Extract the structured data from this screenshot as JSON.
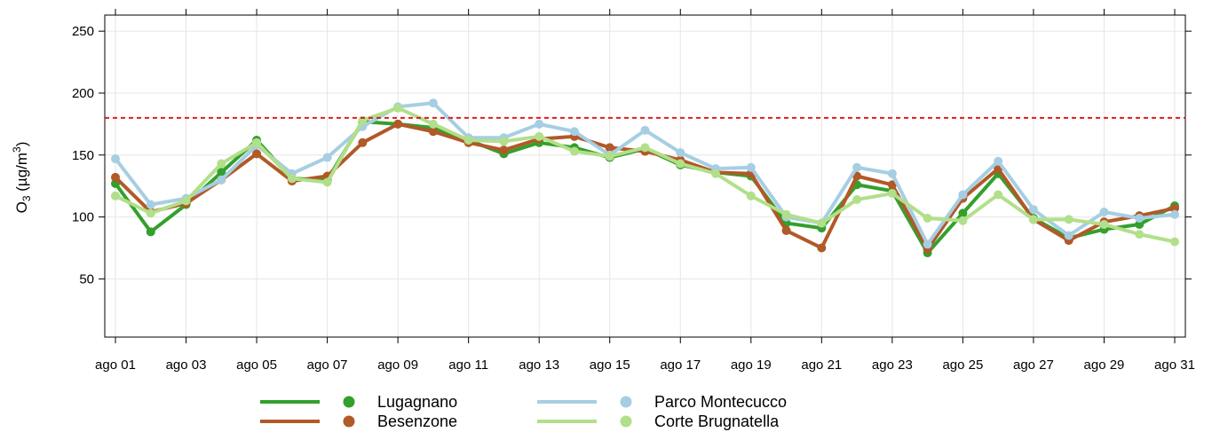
{
  "chart_data": {
    "type": "line",
    "ylabel_parts": [
      "O",
      "3",
      " (µg/m",
      "3",
      ")"
    ],
    "categories": [
      "ago 01",
      null,
      "ago 03",
      null,
      "ago 05",
      null,
      "ago 07",
      null,
      "ago 09",
      null,
      "ago 11",
      null,
      "ago 13",
      null,
      "ago 15",
      null,
      "ago 17",
      null,
      "ago 19",
      null,
      "ago 21",
      null,
      "ago 23",
      null,
      "ago 25",
      null,
      "ago 27",
      null,
      "ago 29",
      null,
      "ago 31"
    ],
    "series": [
      {
        "name": "Lugagnano",
        "color": "#33a02c",
        "values": [
          127,
          88,
          110,
          136,
          162,
          131,
          130,
          177,
          175,
          172,
          162,
          151,
          160,
          156,
          148,
          155,
          142,
          136,
          133,
          95,
          91,
          126,
          121,
          71,
          103,
          135,
          99,
          83,
          90,
          94,
          109
        ]
      },
      {
        "name": "Besenzone",
        "color": "#b15928",
        "values": [
          132,
          104,
          111,
          130,
          151,
          129,
          133,
          160,
          175,
          169,
          160,
          154,
          163,
          165,
          156,
          153,
          146,
          136,
          135,
          89,
          75,
          133,
          126,
          74,
          115,
          139,
          98,
          81,
          96,
          101,
          107
        ]
      },
      {
        "name": "Parco Montecucco",
        "color": "#a6cee3",
        "values": [
          147,
          110,
          115,
          130,
          158,
          135,
          148,
          173,
          189,
          192,
          164,
          164,
          175,
          169,
          150,
          170,
          152,
          139,
          140,
          100,
          95,
          140,
          135,
          78,
          118,
          145,
          106,
          85,
          104,
          99,
          102
        ]
      },
      {
        "name": "Corte Brugnatella",
        "color": "#b2df8a",
        "values": [
          117,
          103,
          113,
          143,
          160,
          131,
          128,
          178,
          188,
          175,
          162,
          161,
          165,
          153,
          149,
          156,
          143,
          135,
          117,
          102,
          95,
          114,
          119,
          99,
          97,
          118,
          98,
          98,
          94,
          86,
          80
        ]
      }
    ],
    "reference_line": {
      "value": 180,
      "color": "#e31a1c"
    },
    "ylim": [
      3,
      263
    ],
    "yticks": [
      50,
      100,
      150,
      200,
      250
    ],
    "grid": true
  }
}
